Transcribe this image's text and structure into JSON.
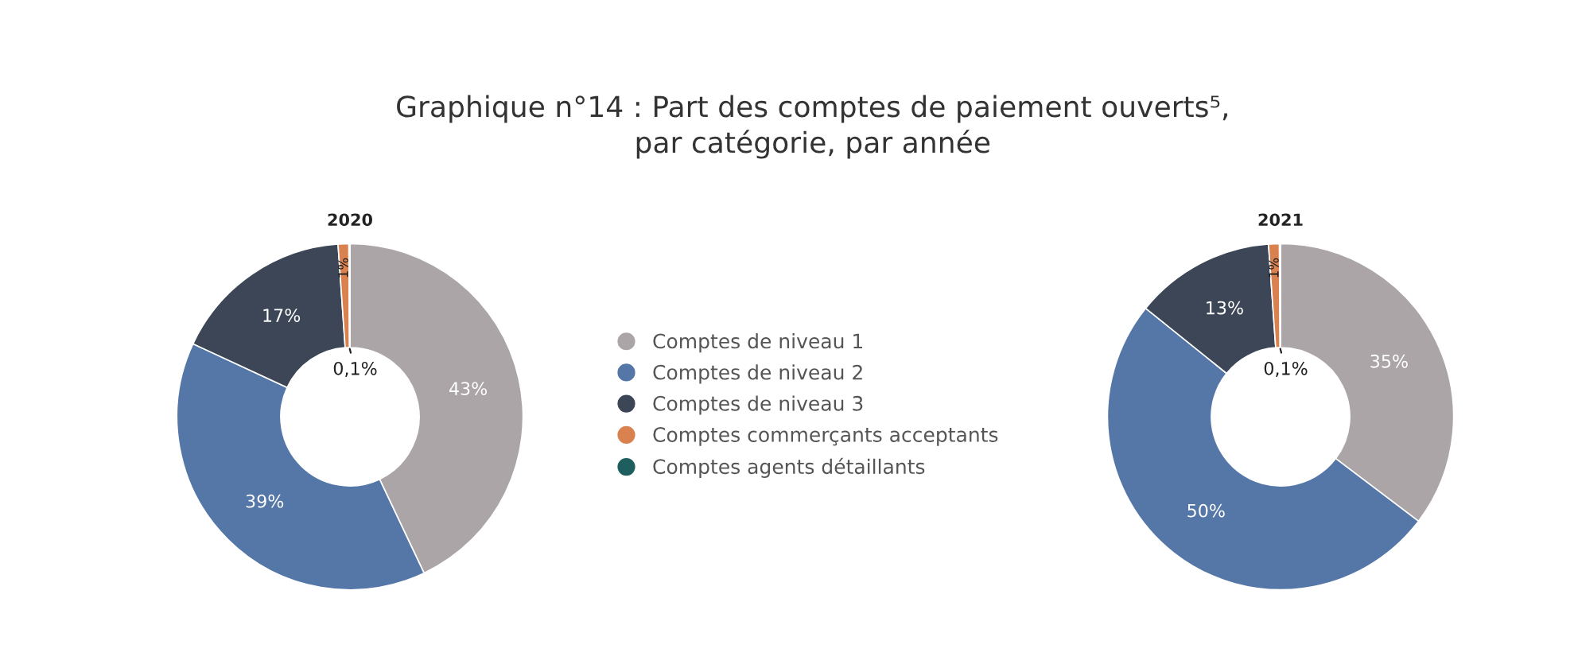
{
  "chart_data": [
    {
      "type": "donut",
      "title": "Graphique n°14 : Part des comptes de paiement ouverts⁵,\npar catégorie, par année",
      "subtitle": "2020",
      "legend": "right",
      "categories": [
        "Comptes de niveau 1",
        "Comptes de niveau 2",
        "Comptes de niveau 3",
        "Comptes commerçants acceptants",
        "Comptes agents détaillants"
      ],
      "values": [
        43,
        39,
        17,
        1,
        0.1
      ],
      "value_labels": [
        "43%",
        "39%",
        "17%",
        "1%",
        "0,1%"
      ],
      "colors": [
        "#aba5a7",
        "#5577a8",
        "#3c4657",
        "#d9824f",
        "#1f5e5e"
      ]
    },
    {
      "type": "donut",
      "subtitle": "2021",
      "legend": false,
      "categories": [
        null,
        null,
        null,
        null,
        null
      ],
      "values": [
        35,
        50,
        13,
        1,
        0.1
      ],
      "value_labels": [
        "35%",
        "50%",
        "13%",
        "1%",
        "0,1%"
      ],
      "colors": [
        "#aba5a7",
        "#5577a8",
        "#3c4657",
        "#d9824f",
        "#1f5e5e"
      ]
    }
  ]
}
